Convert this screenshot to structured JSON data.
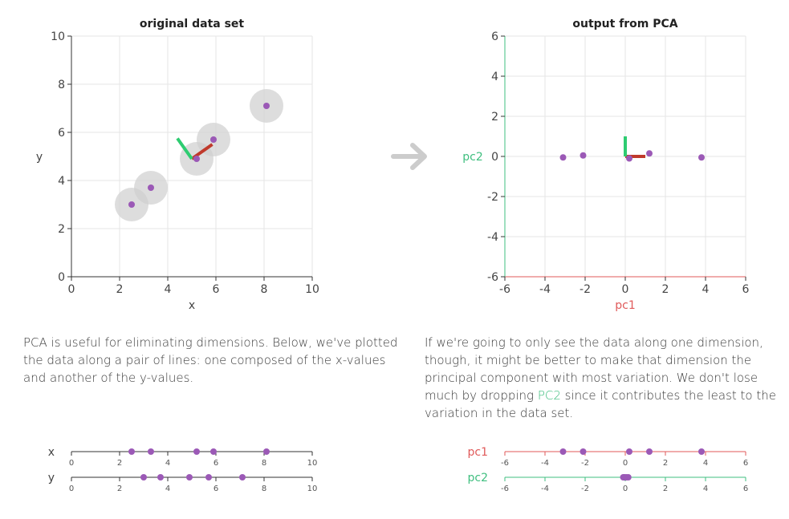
{
  "colors": {
    "point": "#9b59b6",
    "pc1": "#e05a5a",
    "pc2": "#3fbf7f",
    "grid": "#e6e6e6",
    "axis": "#333333",
    "halo": "#cfcfcf",
    "arrow": "#cccccc",
    "vec_red": "#c0392b",
    "vec_green": "#2ecc71"
  },
  "arrow_icon": "right-arrow",
  "text": {
    "left_paragraph": "PCA is useful for eliminating dimensions. Below, we've plotted the data along a pair of lines: one composed of the x-values and another of the y-values.",
    "right_before": "If we're going to only see the data along one dimension, though, it might be better to make that dimension the principal component with most variation. We don't lose much by dropping ",
    "right_pc2": "PC2",
    "right_after": " since it contributes the least to the variation in the data set."
  },
  "chart_data": [
    {
      "id": "original",
      "type": "scatter",
      "title": "original data set",
      "xlabel": "x",
      "ylabel": "y",
      "xlim": [
        0,
        10
      ],
      "ylim": [
        0,
        10
      ],
      "xticks": [
        "0",
        "2",
        "4",
        "6",
        "8",
        "10"
      ],
      "yticks": [
        "0",
        "2",
        "4",
        "6",
        "8",
        "10"
      ],
      "grid": true,
      "points": [
        [
          2.5,
          3.0
        ],
        [
          3.3,
          3.7
        ],
        [
          5.2,
          4.9
        ],
        [
          5.9,
          5.7
        ],
        [
          8.1,
          7.1
        ]
      ],
      "halo_radius": 0.7,
      "vectors": [
        {
          "name": "pc1",
          "from": [
            5.0,
            4.9
          ],
          "to": [
            5.85,
            5.5
          ],
          "color": "vec_red"
        },
        {
          "name": "pc2",
          "from": [
            5.0,
            4.9
          ],
          "to": [
            4.4,
            5.75
          ],
          "color": "vec_green"
        }
      ]
    },
    {
      "id": "pca",
      "type": "scatter",
      "title": "output from PCA",
      "xlabel": "pc1",
      "ylabel": "pc2",
      "xlim": [
        -6,
        6
      ],
      "ylim": [
        -6,
        6
      ],
      "xticks": [
        "-6",
        "-4",
        "-2",
        "0",
        "2",
        "4",
        "6"
      ],
      "yticks": [
        "-6",
        "-4",
        "-2",
        "0",
        "2",
        "4",
        "6"
      ],
      "grid": true,
      "points": [
        [
          -3.1,
          -0.05
        ],
        [
          -2.1,
          0.05
        ],
        [
          0.2,
          -0.1
        ],
        [
          1.2,
          0.15
        ],
        [
          3.8,
          -0.05
        ]
      ],
      "vectors": [
        {
          "name": "pc1",
          "from": [
            0,
            0
          ],
          "to": [
            1.0,
            0
          ],
          "color": "vec_red"
        },
        {
          "name": "pc2",
          "from": [
            0,
            0
          ],
          "to": [
            0,
            1.0
          ],
          "color": "vec_green"
        }
      ]
    },
    {
      "id": "strip-left",
      "type": "scatter",
      "lines": [
        {
          "label": "x",
          "range": [
            0,
            10
          ],
          "ticks": [
            "0",
            "2",
            "4",
            "6",
            "8",
            "10"
          ],
          "values": [
            2.5,
            3.3,
            5.2,
            5.9,
            8.1
          ]
        },
        {
          "label": "y",
          "range": [
            0,
            10
          ],
          "ticks": [
            "0",
            "2",
            "4",
            "6",
            "8",
            "10"
          ],
          "values": [
            3.0,
            3.7,
            4.9,
            5.7,
            7.1
          ]
        }
      ]
    },
    {
      "id": "strip-right",
      "type": "scatter",
      "lines": [
        {
          "label": "pc1",
          "range": [
            -6,
            6
          ],
          "ticks": [
            "-6",
            "-4",
            "-2",
            "0",
            "2",
            "4",
            "6"
          ],
          "values": [
            -3.1,
            -2.1,
            0.2,
            1.2,
            3.8
          ]
        },
        {
          "label": "pc2",
          "range": [
            -6,
            6
          ],
          "ticks": [
            "-6",
            "-4",
            "-2",
            "0",
            "2",
            "4",
            "6"
          ],
          "values": [
            -0.05,
            0.05,
            -0.1,
            0.15,
            -0.05
          ]
        }
      ]
    }
  ]
}
